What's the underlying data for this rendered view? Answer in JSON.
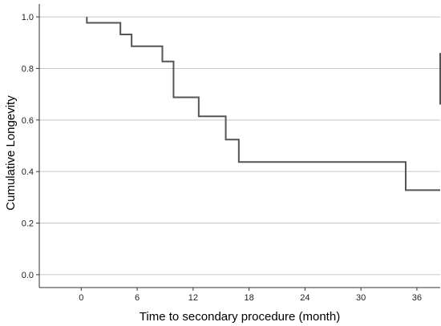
{
  "chart_data": {
    "type": "line",
    "step": true,
    "xlabel": "Time to secondary procedure (month)",
    "ylabel": "Cumulative Longevity",
    "xlim": [
      -4.5,
      38.5
    ],
    "ylim": [
      -0.05,
      1.05
    ],
    "x_ticks": [
      0,
      6,
      12,
      18,
      24,
      30,
      36
    ],
    "x_tick_labels": [
      "0",
      "6",
      "12",
      "18",
      "24",
      "30",
      "36"
    ],
    "y_ticks": [
      0.0,
      0.2,
      0.4,
      0.6,
      0.8,
      1.0
    ],
    "y_tick_labels": [
      "0.0",
      "0.2",
      "0.4",
      "0.6",
      "0.8",
      "1.0"
    ],
    "grid": "horizontal",
    "series": [
      {
        "color": "#555555",
        "points": [
          [
            0.6,
            1.0
          ],
          [
            0.6,
            0.977
          ],
          [
            4.2,
            0.977
          ],
          [
            4.2,
            0.932
          ],
          [
            5.4,
            0.932
          ],
          [
            5.4,
            0.886
          ],
          [
            8.7,
            0.886
          ],
          [
            8.7,
            0.827
          ],
          [
            9.9,
            0.827
          ],
          [
            9.9,
            0.688
          ],
          [
            12.6,
            0.688
          ],
          [
            12.6,
            0.614
          ],
          [
            15.5,
            0.614
          ],
          [
            15.5,
            0.524
          ],
          [
            16.9,
            0.524
          ],
          [
            16.9,
            0.437
          ],
          [
            34.8,
            0.437
          ],
          [
            34.8,
            0.328
          ],
          [
            38.5,
            0.328
          ]
        ]
      },
      {
        "color": "#555555",
        "points": [
          [
            38.5,
            0.86
          ],
          [
            38.5,
            0.66
          ]
        ]
      }
    ]
  }
}
